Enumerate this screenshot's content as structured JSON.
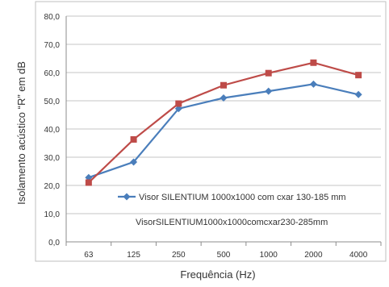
{
  "chart_data": {
    "type": "line",
    "categories": [
      "63",
      "125",
      "250",
      "500",
      "1000",
      "2000",
      "4000"
    ],
    "xlabel": "Frequência (Hz)",
    "ylabel": "Isolamento acústico “R” em dB",
    "ylim": [
      0,
      80
    ],
    "yticks": [
      "0,0",
      "10,0",
      "20,0",
      "30,0",
      "40,0",
      "50,0",
      "60,0",
      "70,0",
      "80,0"
    ],
    "grid": true,
    "legend_position": "inside-bottom-center",
    "series": [
      {
        "name": "Visor SILENTIUM 1000x1000 com cxar 130-185 mm",
        "marker": "diamond",
        "color": "#4a7ebb",
        "values": [
          22.8,
          28.3,
          47.2,
          51.0,
          53.4,
          55.9,
          52.2
        ]
      },
      {
        "name": "VisorSILENTIUM1000x1000comcxar230-285mm",
        "marker": "square",
        "color": "#be4b48",
        "values": [
          21.0,
          36.3,
          49.0,
          55.5,
          59.8,
          63.5,
          59.1
        ]
      }
    ]
  }
}
